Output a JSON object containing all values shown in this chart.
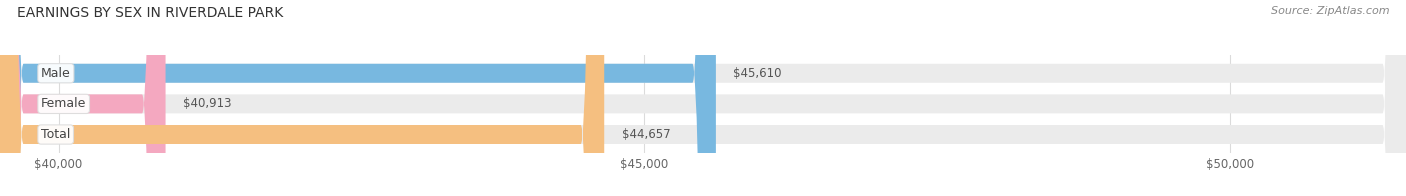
{
  "title": "EARNINGS BY SEX IN RIVERDALE PARK",
  "source": "Source: ZipAtlas.com",
  "categories": [
    "Male",
    "Female",
    "Total"
  ],
  "values": [
    45610,
    40913,
    44657
  ],
  "bar_colors": [
    "#78b8e0",
    "#f4a8c0",
    "#f5bf80"
  ],
  "bar_bg_color": "#ebebeb",
  "xlim_min": 39500,
  "xlim_max": 51500,
  "data_min": 40000,
  "data_max": 50000,
  "xticks": [
    40000,
    45000,
    50000
  ],
  "xtick_labels": [
    "$40,000",
    "$45,000",
    "$50,000"
  ],
  "value_labels": [
    "$45,610",
    "$40,913",
    "$44,657"
  ],
  "bar_height": 0.62,
  "figsize": [
    14.06,
    1.96
  ],
  "dpi": 100,
  "bg_color": "#ffffff",
  "title_color": "#333333",
  "source_color": "#888888",
  "label_color": "#555555",
  "value_color": "#555555",
  "grid_color": "#cccccc"
}
